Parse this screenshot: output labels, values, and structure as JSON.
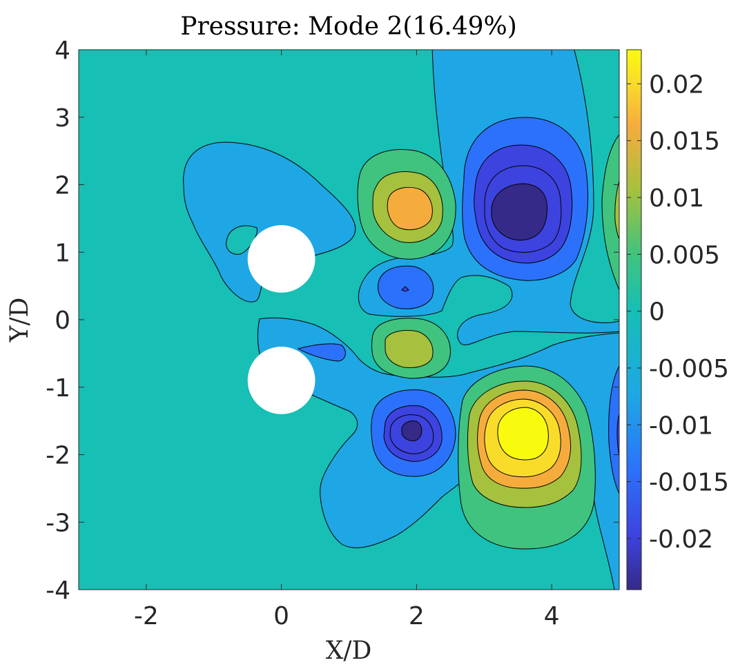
{
  "chart_data": {
    "type": "contour",
    "title": "Pressure: Mode 2(16.49%)",
    "xlabel": "X/D",
    "ylabel": "Y/D",
    "xlim": [
      -3,
      5
    ],
    "ylim": [
      -4,
      4
    ],
    "x_ticks": [
      -2,
      0,
      2,
      4
    ],
    "y_ticks": [
      -4,
      -3,
      -2,
      -1,
      0,
      1,
      2,
      3,
      4
    ],
    "x_tick_labels": [
      "-2",
      "0",
      "2",
      "4"
    ],
    "y_tick_labels": [
      "-4",
      "-3",
      "-2",
      "-1",
      "0",
      "1",
      "2",
      "3",
      "4"
    ],
    "colorbar": {
      "colormap": "parula",
      "clim": [
        -0.0245,
        0.023
      ],
      "ticks": [
        0.02,
        0.015,
        0.01,
        0.005,
        0,
        -0.005,
        -0.01,
        -0.015,
        -0.02
      ],
      "tick_labels": [
        "0.02",
        "0.015",
        "0.01",
        "0.005",
        "0",
        "-0.005",
        "-0.01",
        "-0.015",
        "-0.02"
      ],
      "colors": [
        "#352a87",
        "#3d43df",
        "#2c71fb",
        "#1ea7e4",
        "#17bfb4",
        "#40c37e",
        "#a6c13e",
        "#f6ac3d",
        "#f9dc2a",
        "#f9fb0e"
      ]
    },
    "cylinders": [
      {
        "x": 0,
        "y": 0.9,
        "diameter": 1
      },
      {
        "x": 0,
        "y": -0.9,
        "diameter": 1
      }
    ],
    "extrema": [
      {
        "x": 1.9,
        "y": 1.65,
        "value": 0.0155
      },
      {
        "x": 3.55,
        "y": 1.55,
        "value": -0.0205
      },
      {
        "x": 1.85,
        "y": -0.45,
        "value": 0.009
      },
      {
        "x": 1.8,
        "y": 0.4,
        "value": -0.012
      },
      {
        "x": 1.95,
        "y": -1.65,
        "value": -0.022
      },
      {
        "x": 3.55,
        "y": -1.6,
        "value": 0.022
      },
      {
        "x": 5.0,
        "y": 1.6,
        "value": 0.008
      },
      {
        "x": 5.0,
        "y": -1.6,
        "value": -0.008
      }
    ]
  }
}
